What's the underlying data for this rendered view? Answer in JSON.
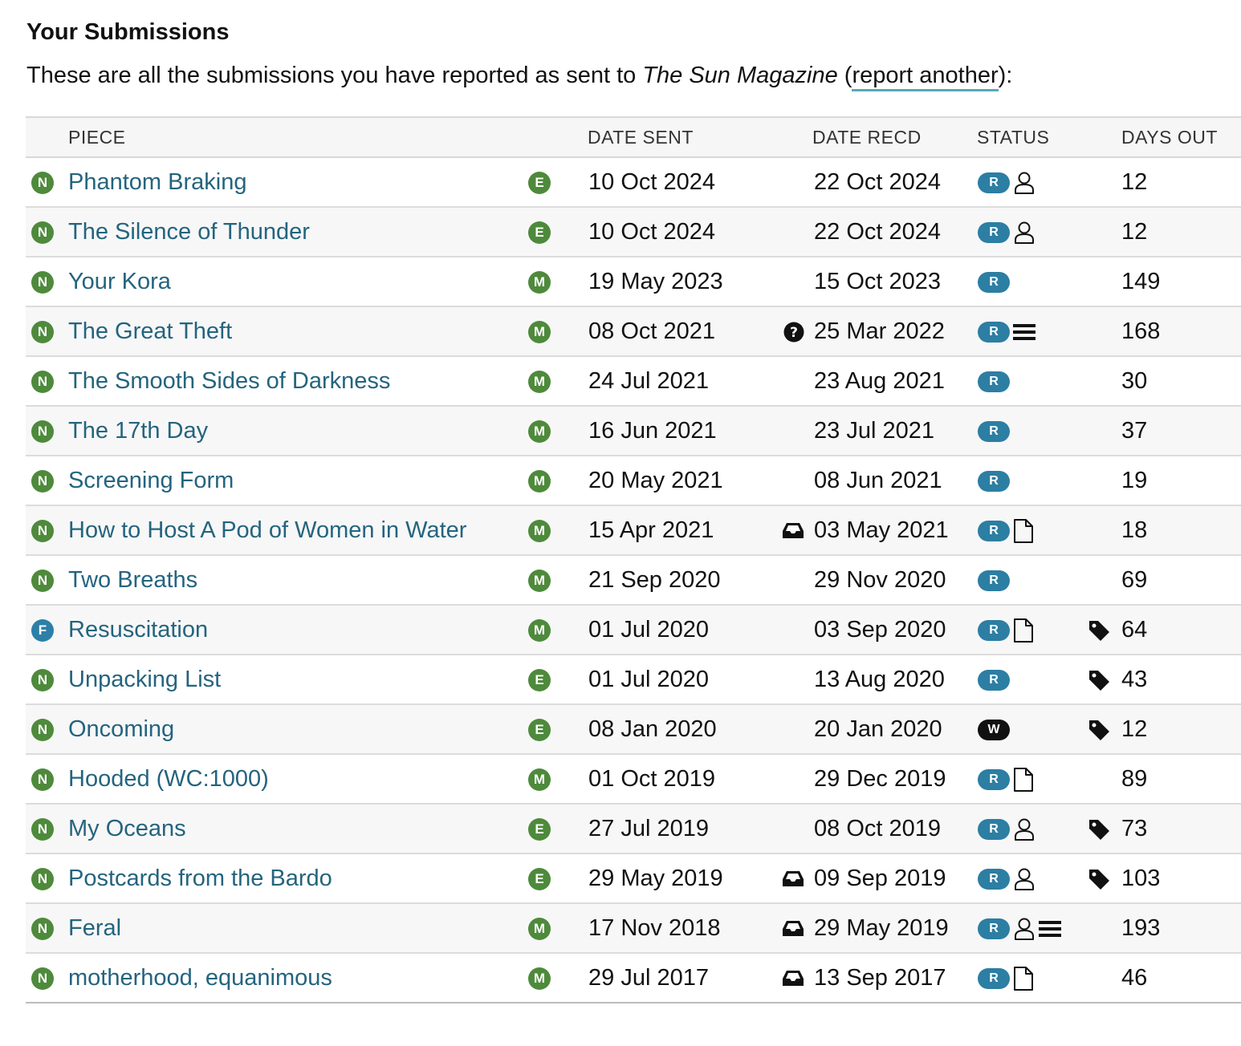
{
  "heading": "Your Submissions",
  "intro": {
    "prefix": "These are all the submissions you have reported as sent to ",
    "magazine": "The Sun Magazine",
    "open_paren": " (",
    "link": "report another",
    "suffix": "):"
  },
  "columns": {
    "piece": "PIECE",
    "date_sent": "DATE SENT",
    "date_recd": "DATE RECD",
    "status": "STATUS",
    "days_out": "DAYS OUT"
  },
  "colors": {
    "badge_green": "#4e8a3b",
    "badge_blue": "#2c80a8",
    "status_r": "#2c7ea3",
    "status_w": "#111111",
    "link": "#24647e"
  },
  "rows": [
    {
      "type": "N",
      "title": "Phantom Braking",
      "genre": "E",
      "sent": "10 Oct 2024",
      "sent_icon": "",
      "recd": "22 Oct 2024",
      "status": "R",
      "status_icons": [
        "person-icon"
      ],
      "tag": false,
      "days": "12"
    },
    {
      "type": "N",
      "title": "The Silence of Thunder",
      "genre": "E",
      "sent": "10 Oct 2024",
      "sent_icon": "",
      "recd": "22 Oct 2024",
      "status": "R",
      "status_icons": [
        "person-icon"
      ],
      "tag": false,
      "days": "12"
    },
    {
      "type": "N",
      "title": "Your Kora",
      "genre": "M",
      "sent": "19 May 2023",
      "sent_icon": "",
      "recd": "15 Oct 2023",
      "status": "R",
      "status_icons": [],
      "tag": false,
      "days": "149"
    },
    {
      "type": "N",
      "title": "The Great Theft",
      "genre": "M",
      "sent": "08 Oct 2021",
      "sent_icon": "question-icon",
      "recd": "25 Mar 2022",
      "status": "R",
      "status_icons": [
        "list-icon"
      ],
      "tag": false,
      "days": "168"
    },
    {
      "type": "N",
      "title": "The Smooth Sides of Darkness",
      "genre": "M",
      "sent": "24 Jul 2021",
      "sent_icon": "",
      "recd": "23 Aug 2021",
      "status": "R",
      "status_icons": [],
      "tag": false,
      "days": "30"
    },
    {
      "type": "N",
      "title": "The 17th Day",
      "genre": "M",
      "sent": "16 Jun 2021",
      "sent_icon": "",
      "recd": "23 Jul 2021",
      "status": "R",
      "status_icons": [],
      "tag": false,
      "days": "37"
    },
    {
      "type": "N",
      "title": "Screening Form",
      "genre": "M",
      "sent": "20 May 2021",
      "sent_icon": "",
      "recd": "08 Jun 2021",
      "status": "R",
      "status_icons": [],
      "tag": false,
      "days": "19"
    },
    {
      "type": "N",
      "title": "How to Host A Pod of Women in Water",
      "genre": "M",
      "sent": "15 Apr 2021",
      "sent_icon": "inbox-icon",
      "recd": "03 May 2021",
      "status": "R",
      "status_icons": [
        "document-icon"
      ],
      "tag": false,
      "days": "18"
    },
    {
      "type": "N",
      "title": "Two Breaths",
      "genre": "M",
      "sent": "21 Sep 2020",
      "sent_icon": "",
      "recd": "29 Nov 2020",
      "status": "R",
      "status_icons": [],
      "tag": false,
      "days": "69"
    },
    {
      "type": "F",
      "title": "Resuscitation",
      "genre": "M",
      "sent": "01 Jul 2020",
      "sent_icon": "",
      "recd": "03 Sep 2020",
      "status": "R",
      "status_icons": [
        "document-icon"
      ],
      "tag": true,
      "days": "64"
    },
    {
      "type": "N",
      "title": "Unpacking List",
      "genre": "E",
      "sent": "01 Jul 2020",
      "sent_icon": "",
      "recd": "13 Aug 2020",
      "status": "R",
      "status_icons": [],
      "tag": true,
      "days": "43"
    },
    {
      "type": "N",
      "title": "Oncoming",
      "genre": "E",
      "sent": "08 Jan 2020",
      "sent_icon": "",
      "recd": "20 Jan 2020",
      "status": "W",
      "status_icons": [],
      "tag": true,
      "days": "12"
    },
    {
      "type": "N",
      "title": "Hooded (WC:1000)",
      "genre": "M",
      "sent": "01 Oct 2019",
      "sent_icon": "",
      "recd": "29 Dec 2019",
      "status": "R",
      "status_icons": [
        "document-icon"
      ],
      "tag": false,
      "days": "89"
    },
    {
      "type": "N",
      "title": "My Oceans",
      "genre": "E",
      "sent": "27 Jul 2019",
      "sent_icon": "",
      "recd": "08 Oct 2019",
      "status": "R",
      "status_icons": [
        "person-icon"
      ],
      "tag": true,
      "days": "73"
    },
    {
      "type": "N",
      "title": "Postcards from the Bardo",
      "genre": "E",
      "sent": "29 May 2019",
      "sent_icon": "inbox-icon",
      "recd": "09 Sep 2019",
      "status": "R",
      "status_icons": [
        "person-icon"
      ],
      "tag": true,
      "days": "103"
    },
    {
      "type": "N",
      "title": "Feral",
      "genre": "M",
      "sent": "17 Nov 2018",
      "sent_icon": "inbox-icon",
      "recd": "29 May 2019",
      "status": "R",
      "status_icons": [
        "person-icon",
        "list-icon"
      ],
      "tag": false,
      "days": "193"
    },
    {
      "type": "N",
      "title": "motherhood, equanimous",
      "genre": "M",
      "sent": "29 Jul 2017",
      "sent_icon": "inbox-icon",
      "recd": "13 Sep 2017",
      "status": "R",
      "status_icons": [
        "document-icon"
      ],
      "tag": false,
      "days": "46"
    }
  ]
}
